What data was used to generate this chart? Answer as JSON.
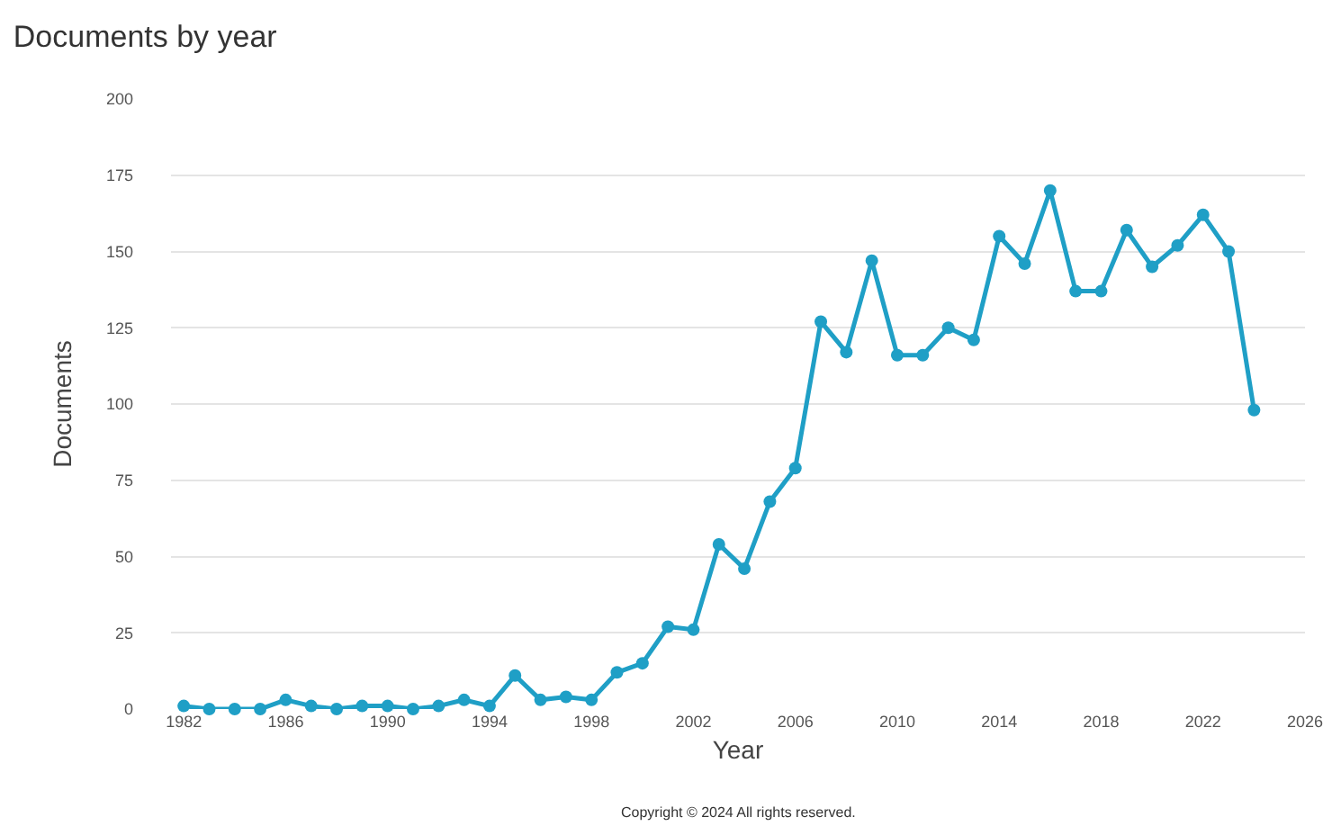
{
  "chart_data": {
    "type": "line",
    "title": "Documents by year",
    "xlabel": "Year",
    "ylabel": "Documents",
    "x": [
      1982,
      1983,
      1984,
      1985,
      1986,
      1987,
      1988,
      1989,
      1990,
      1991,
      1992,
      1993,
      1994,
      1995,
      1996,
      1997,
      1998,
      1999,
      2000,
      2001,
      2002,
      2003,
      2004,
      2005,
      2006,
      2007,
      2008,
      2009,
      2010,
      2011,
      2012,
      2013,
      2014,
      2015,
      2016,
      2017,
      2018,
      2019,
      2020,
      2021,
      2022,
      2023,
      2024
    ],
    "series": [
      {
        "color": "#1f9fc6",
        "values": [
          1,
          0,
          0,
          0,
          3,
          1,
          0,
          1,
          1,
          0,
          1,
          3,
          1,
          11,
          3,
          4,
          3,
          12,
          15,
          27,
          26,
          54,
          46,
          68,
          79,
          127,
          117,
          147,
          116,
          116,
          125,
          121,
          155,
          146,
          170,
          137,
          137,
          157,
          145,
          152,
          162,
          150,
          98
        ]
      }
    ],
    "xlim": [
      1981.5,
      2026
    ],
    "xticks": [
      1982,
      1986,
      1990,
      1994,
      1998,
      2002,
      2006,
      2010,
      2014,
      2018,
      2022,
      2026
    ],
    "ylim": [
      0,
      200
    ],
    "yticks": [
      0,
      25,
      50,
      75,
      100,
      125,
      150,
      175,
      200
    ],
    "grid": "y",
    "marker": "circle",
    "line_style": "solid",
    "annotations": [
      "Copyright © 2024 All rights reserved."
    ]
  }
}
